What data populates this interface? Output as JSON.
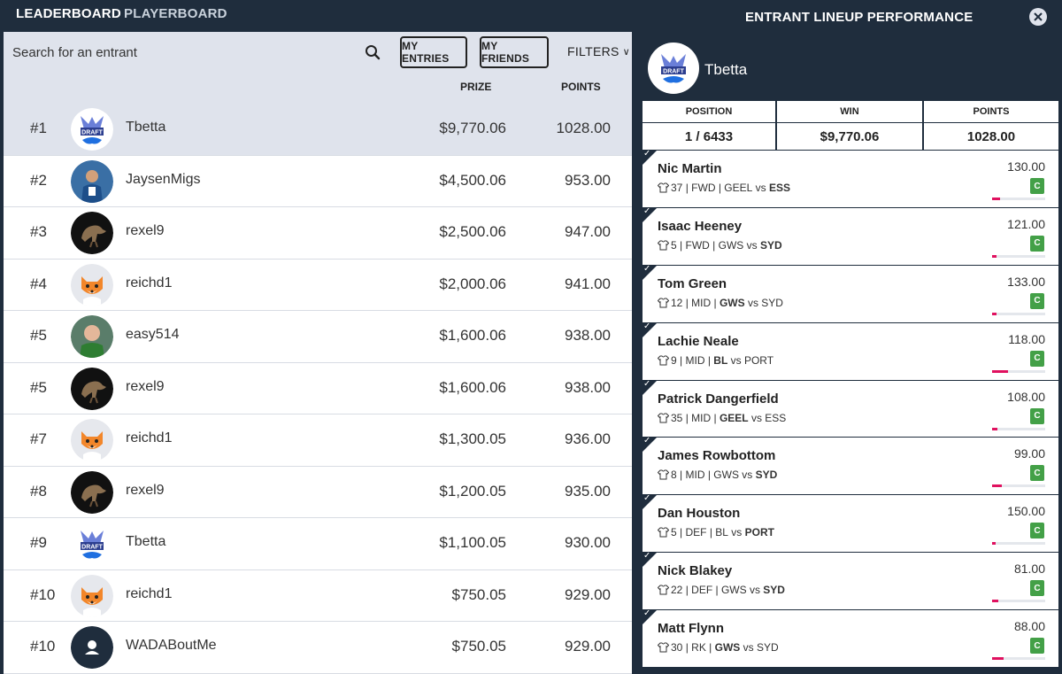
{
  "nav": {
    "leaderboard": "LEADERBOARD",
    "playerboard": "PLAYERBOARD"
  },
  "toolbar": {
    "search_placeholder": "Search for an entrant",
    "my_entries": "MY ENTRIES",
    "my_friends": "MY FRIENDS",
    "filters": "FILTERS",
    "prize_header": "PRIZE",
    "points_header": "POINTS"
  },
  "leaderboard": [
    {
      "rank": "#1",
      "user": "Tbetta",
      "prize": "$9,770.06",
      "points": "1028.00",
      "avatar": "draftstars-logo"
    },
    {
      "rank": "#2",
      "user": "JaysenMigs",
      "prize": "$4,500.06",
      "points": "953.00",
      "avatar": "photo-basketball"
    },
    {
      "rank": "#3",
      "user": "rexel9",
      "prize": "$2,500.06",
      "points": "947.00",
      "avatar": "dinosaur"
    },
    {
      "rank": "#4",
      "user": "reichd1",
      "prize": "$2,000.06",
      "points": "941.00",
      "avatar": "fox"
    },
    {
      "rank": "#5",
      "user": "easy514",
      "prize": "$1,600.06",
      "points": "938.00",
      "avatar": "photo-person"
    },
    {
      "rank": "#5",
      "user": "rexel9",
      "prize": "$1,600.06",
      "points": "938.00",
      "avatar": "dinosaur"
    },
    {
      "rank": "#7",
      "user": "reichd1",
      "prize": "$1,300.05",
      "points": "936.00",
      "avatar": "fox"
    },
    {
      "rank": "#8",
      "user": "rexel9",
      "prize": "$1,200.05",
      "points": "935.00",
      "avatar": "dinosaur"
    },
    {
      "rank": "#9",
      "user": "Tbetta",
      "prize": "$1,100.05",
      "points": "930.00",
      "avatar": "draftstars-logo"
    },
    {
      "rank": "#10",
      "user": "reichd1",
      "prize": "$750.05",
      "points": "929.00",
      "avatar": "fox"
    },
    {
      "rank": "#10",
      "user": "WADABoutMe",
      "prize": "$750.05",
      "points": "929.00",
      "avatar": "default-user"
    }
  ],
  "panel": {
    "title": "ENTRANT LINEUP PERFORMANCE",
    "entrant": "Tbetta",
    "position_label": "POSITION",
    "position_value": "1 / 6433",
    "win_label": "WIN",
    "win_value": "$9,770.06",
    "points_label": "POINTS",
    "points_value": "1028.00",
    "players": [
      {
        "name": "Nic Martin",
        "num": "37",
        "pos": "FWD",
        "team1": "GEEL",
        "team2": "ESS",
        "bold": "team2",
        "points": "130.00",
        "badge": "C",
        "fill": 0.15
      },
      {
        "name": "Isaac Heeney",
        "num": "5",
        "pos": "FWD",
        "team1": "GWS",
        "team2": "SYD",
        "bold": "team2",
        "points": "121.00",
        "badge": "C",
        "fill": 0.08
      },
      {
        "name": "Tom Green",
        "num": "12",
        "pos": "MID",
        "team1": "GWS",
        "team2": "SYD",
        "bold": "team1",
        "points": "133.00",
        "badge": "C",
        "fill": 0.08
      },
      {
        "name": "Lachie Neale",
        "num": "9",
        "pos": "MID",
        "team1": "BL",
        "team2": "PORT",
        "bold": "team1",
        "points": "118.00",
        "badge": "C",
        "fill": 0.3
      },
      {
        "name": "Patrick Dangerfield",
        "num": "35",
        "pos": "MID",
        "team1": "GEEL",
        "team2": "ESS",
        "bold": "team1",
        "points": "108.00",
        "badge": "C",
        "fill": 0.1
      },
      {
        "name": "James Rowbottom",
        "num": "8",
        "pos": "MID",
        "team1": "GWS",
        "team2": "SYD",
        "bold": "team2",
        "points": "99.00",
        "badge": "C",
        "fill": 0.18
      },
      {
        "name": "Dan Houston",
        "num": "5",
        "pos": "DEF",
        "team1": "BL",
        "team2": "PORT",
        "bold": "team2",
        "points": "150.00",
        "badge": "C",
        "fill": 0.06
      },
      {
        "name": "Nick Blakey",
        "num": "22",
        "pos": "DEF",
        "team1": "GWS",
        "team2": "SYD",
        "bold": "team2",
        "points": "81.00",
        "badge": "C",
        "fill": 0.12
      },
      {
        "name": "Matt Flynn",
        "num": "30",
        "pos": "RK",
        "team1": "GWS",
        "team2": "SYD",
        "bold": "team1",
        "points": "88.00",
        "badge": "C",
        "fill": 0.22
      }
    ]
  },
  "colors": {
    "navy": "#1f2d3d",
    "highlight": "#dfe3ec",
    "badge_green": "#43a047",
    "bar_pink": "#e0115f"
  }
}
